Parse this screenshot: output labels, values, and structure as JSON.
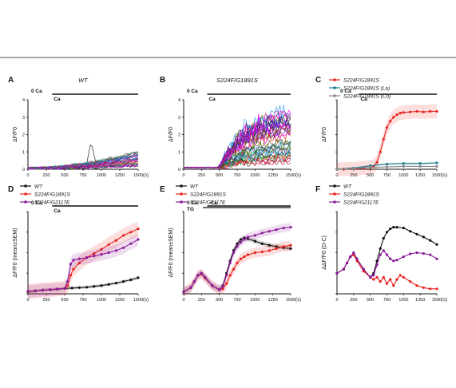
{
  "colors": {
    "wt": "#111111",
    "g1891s": "#e8201c",
    "g2117e": "#8a1a9a",
    "la": "#1a7a8a",
    "co": "#888888",
    "rule": "#444444"
  },
  "chart_data": [
    {
      "panel": "A",
      "type": "line",
      "title": "WT",
      "ylabel": "ΔF/F0",
      "xlabel": "(s)",
      "xlim": [
        0,
        1500
      ],
      "ylim": [
        0,
        4
      ],
      "xticks": [
        "0",
        "250",
        "500",
        "750",
        "1000",
        "1250",
        "1500"
      ],
      "yticks": [
        "0",
        "1",
        "2",
        "3",
        "4"
      ],
      "condition_labels": [
        "0 Ca",
        "Ca"
      ],
      "ca_start": 330,
      "series_count": 28,
      "summary": {
        "baseline": 0.15,
        "end_range": [
          0.1,
          1.05
        ],
        "peak": {
          "x": 860,
          "y": 1.6
        }
      }
    },
    {
      "panel": "B",
      "type": "line",
      "title": "S224F/G1891S",
      "ylabel": "ΔF/F0",
      "xlabel": "(s)",
      "xlim": [
        0,
        1500
      ],
      "ylim": [
        0,
        4
      ],
      "xticks": [
        "0",
        "250",
        "500",
        "750",
        "1000",
        "1250",
        "1500"
      ],
      "yticks": [
        "0",
        "1",
        "2",
        "3",
        "4"
      ],
      "condition_labels": [
        "0 Ca",
        "Ca"
      ],
      "ca_start": 330,
      "series_count": 38,
      "summary": {
        "baseline": 0.1,
        "rise_start": 500,
        "end_range": [
          0.3,
          3.7
        ]
      }
    },
    {
      "panel": "C",
      "type": "line",
      "ylabel": "ΔF/F0",
      "xlabel": "(s)",
      "xlim": [
        0,
        1500
      ],
      "ylim": [
        0,
        1.2
      ],
      "xticks": [
        "0",
        "250",
        "500",
        "750",
        "1000",
        "1250",
        "1500"
      ],
      "condition_labels": [
        "0 Ca",
        "Ca"
      ],
      "ca_start": 330,
      "legend": [
        "S224F/G1891S",
        "S224F/G1891S (La)",
        "S224F/G1891S (Co)"
      ],
      "series": [
        {
          "name": "S224F/G1891S",
          "color": "g1891s",
          "x": [
            0,
            100,
            200,
            300,
            400,
            500,
            550,
            600,
            650,
            700,
            750,
            800,
            850,
            900,
            950,
            1000,
            1100,
            1200,
            1300,
            1400,
            1500
          ],
          "y": [
            0,
            0,
            0.01,
            0.01,
            0.02,
            0.03,
            0.05,
            0.12,
            0.3,
            0.52,
            0.72,
            0.83,
            0.9,
            0.94,
            0.97,
            0.98,
            0.99,
            1.0,
            0.99,
            1.0,
            1.0
          ],
          "err": 0.12
        },
        {
          "name": "S224F/G1891S (La)",
          "color": "la",
          "x": [
            0,
            250,
            500,
            750,
            1000,
            1250,
            1500
          ],
          "y": [
            0,
            0.02,
            0.06,
            0.09,
            0.1,
            0.1,
            0.11
          ],
          "err": 0.02
        },
        {
          "name": "S224F/G1891S (Co)",
          "color": "co",
          "x": [
            0,
            250,
            500,
            750,
            1000,
            1250,
            1500
          ],
          "y": [
            0,
            0.01,
            0.03,
            0.04,
            0.05,
            0.05,
            0.05
          ],
          "err": 0.01
        }
      ]
    },
    {
      "panel": "D",
      "type": "line",
      "ylabel": "ΔF/F0 (mean±SEM)",
      "xlabel": "(s)",
      "xlim": [
        0,
        1500
      ],
      "ylim": [
        0,
        2
      ],
      "xticks": [
        "0",
        "250",
        "500",
        "750",
        "1000",
        "1250",
        "1500"
      ],
      "condition_labels": [
        "0 Ca",
        "Ca"
      ],
      "ca_start": 330,
      "legend": [
        "WT",
        "S224F/G1891S",
        "S224F/G2117E"
      ],
      "series": [
        {
          "name": "WT",
          "color": "wt",
          "x": [
            0,
            100,
            200,
            300,
            400,
            500,
            600,
            700,
            800,
            900,
            1000,
            1100,
            1200,
            1300,
            1400,
            1500
          ],
          "y": [
            0.05,
            0.07,
            0.09,
            0.1,
            0.11,
            0.13,
            0.14,
            0.15,
            0.16,
            0.18,
            0.2,
            0.23,
            0.26,
            0.3,
            0.34,
            0.39
          ],
          "err": 0.04
        },
        {
          "name": "S224F/G1891S",
          "color": "g1891s",
          "x": [
            0,
            100,
            200,
            300,
            400,
            500,
            540,
            580,
            620,
            700,
            800,
            900,
            1000,
            1100,
            1200,
            1300,
            1400,
            1500
          ],
          "y": [
            0.06,
            0.07,
            0.09,
            0.1,
            0.12,
            0.13,
            0.2,
            0.45,
            0.6,
            0.75,
            0.88,
            0.98,
            1.08,
            1.2,
            1.3,
            1.42,
            1.5,
            1.58
          ],
          "err": 0.18
        },
        {
          "name": "S224F/G2117E",
          "color": "g2117e",
          "x": [
            0,
            100,
            200,
            300,
            400,
            500,
            540,
            580,
            620,
            700,
            800,
            900,
            1000,
            1100,
            1200,
            1300,
            1400,
            1500
          ],
          "y": [
            0.06,
            0.07,
            0.09,
            0.1,
            0.12,
            0.13,
            0.3,
            0.72,
            0.82,
            0.85,
            0.88,
            0.92,
            0.96,
            1.0,
            1.05,
            1.12,
            1.22,
            1.32
          ],
          "err": 0.15
        }
      ]
    },
    {
      "panel": "E",
      "type": "line",
      "ylabel": "ΔF/F0 (mean±SEM)",
      "xlabel": "(s)",
      "xlim": [
        0,
        1500
      ],
      "ylim": [
        0,
        2
      ],
      "xticks": [
        "0",
        "250",
        "500",
        "750",
        "1000",
        "1250",
        "1500"
      ],
      "condition_labels": [
        "0 Ca",
        "TG",
        "Ca"
      ],
      "ca_start": 330,
      "legend": [
        "WT",
        "S224F/G1891S",
        "S224F/G2117E"
      ],
      "series": [
        {
          "name": "WT",
          "color": "wt",
          "x": [
            0,
            100,
            150,
            200,
            250,
            300,
            400,
            500,
            550,
            600,
            650,
            700,
            750,
            800,
            850,
            900,
            1000,
            1100,
            1200,
            1300,
            1400,
            1500
          ],
          "y": [
            0.05,
            0.15,
            0.3,
            0.45,
            0.5,
            0.4,
            0.2,
            0.1,
            0.2,
            0.5,
            0.8,
            1.05,
            1.22,
            1.32,
            1.36,
            1.34,
            1.28,
            1.22,
            1.18,
            1.15,
            1.12,
            1.1
          ],
          "err": 0.06
        },
        {
          "name": "S224F/G1891S",
          "color": "g1891s",
          "x": [
            0,
            100,
            150,
            200,
            250,
            300,
            400,
            500,
            550,
            600,
            650,
            700,
            750,
            800,
            850,
            900,
            1000,
            1100,
            1200,
            1300,
            1400,
            1500
          ],
          "y": [
            0.05,
            0.15,
            0.3,
            0.45,
            0.48,
            0.38,
            0.2,
            0.1,
            0.12,
            0.25,
            0.45,
            0.6,
            0.75,
            0.85,
            0.9,
            0.95,
            1.0,
            1.02,
            1.05,
            1.1,
            1.15,
            1.18
          ],
          "err": 0.12
        },
        {
          "name": "S224F/G2117E",
          "color": "g2117e",
          "x": [
            0,
            100,
            150,
            200,
            250,
            300,
            400,
            500,
            550,
            600,
            650,
            700,
            750,
            800,
            850,
            900,
            1000,
            1100,
            1200,
            1300,
            1400,
            1500
          ],
          "y": [
            0.05,
            0.15,
            0.3,
            0.45,
            0.5,
            0.4,
            0.2,
            0.1,
            0.18,
            0.45,
            0.75,
            1.0,
            1.15,
            1.25,
            1.32,
            1.38,
            1.42,
            1.48,
            1.52,
            1.56,
            1.6,
            1.62
          ],
          "err": 0.1
        }
      ]
    },
    {
      "panel": "F",
      "type": "line",
      "ylabel": "ΔΔF/F0 (D-C)",
      "xlabel": "(s)",
      "xlim": [
        0,
        1500
      ],
      "ylim": [
        -0.5,
        1.5
      ],
      "xticks": [
        "0",
        "250",
        "500",
        "750",
        "1000",
        "1250",
        "1500"
      ],
      "legend": [
        "WT",
        "S224F/G1891S",
        "S224F/G2117E"
      ],
      "series": [
        {
          "name": "WT",
          "color": "wt",
          "x": [
            0,
            100,
            150,
            200,
            250,
            300,
            400,
            500,
            550,
            600,
            650,
            700,
            750,
            800,
            850,
            900,
            1000,
            1100,
            1200,
            1300,
            1400,
            1500
          ],
          "y": [
            0,
            0.1,
            0.25,
            0.4,
            0.48,
            0.35,
            0.1,
            -0.1,
            0.0,
            0.3,
            0.6,
            0.85,
            1.0,
            1.08,
            1.12,
            1.12,
            1.1,
            1.02,
            0.95,
            0.88,
            0.8,
            0.7
          ]
        },
        {
          "name": "S224F/G1891S",
          "color": "g1891s",
          "x": [
            0,
            100,
            150,
            200,
            250,
            300,
            400,
            500,
            550,
            600,
            650,
            700,
            750,
            800,
            850,
            900,
            950,
            1000,
            1100,
            1200,
            1300,
            1400,
            1500
          ],
          "y": [
            0,
            0.1,
            0.25,
            0.4,
            0.45,
            0.3,
            0.05,
            -0.1,
            -0.15,
            -0.1,
            -0.2,
            -0.1,
            -0.25,
            -0.15,
            -0.3,
            -0.15,
            -0.05,
            -0.1,
            -0.2,
            -0.3,
            -0.35,
            -0.38,
            -0.38
          ]
        },
        {
          "name": "S224F/G2117E",
          "color": "g2117e",
          "x": [
            0,
            100,
            150,
            200,
            250,
            300,
            400,
            500,
            550,
            600,
            650,
            700,
            750,
            800,
            850,
            900,
            1000,
            1100,
            1200,
            1300,
            1400,
            1500
          ],
          "y": [
            0,
            0.1,
            0.25,
            0.4,
            0.5,
            0.35,
            0.1,
            -0.1,
            -0.05,
            0.2,
            0.45,
            0.55,
            0.45,
            0.35,
            0.3,
            0.32,
            0.4,
            0.47,
            0.5,
            0.48,
            0.45,
            0.35
          ]
        }
      ]
    }
  ]
}
